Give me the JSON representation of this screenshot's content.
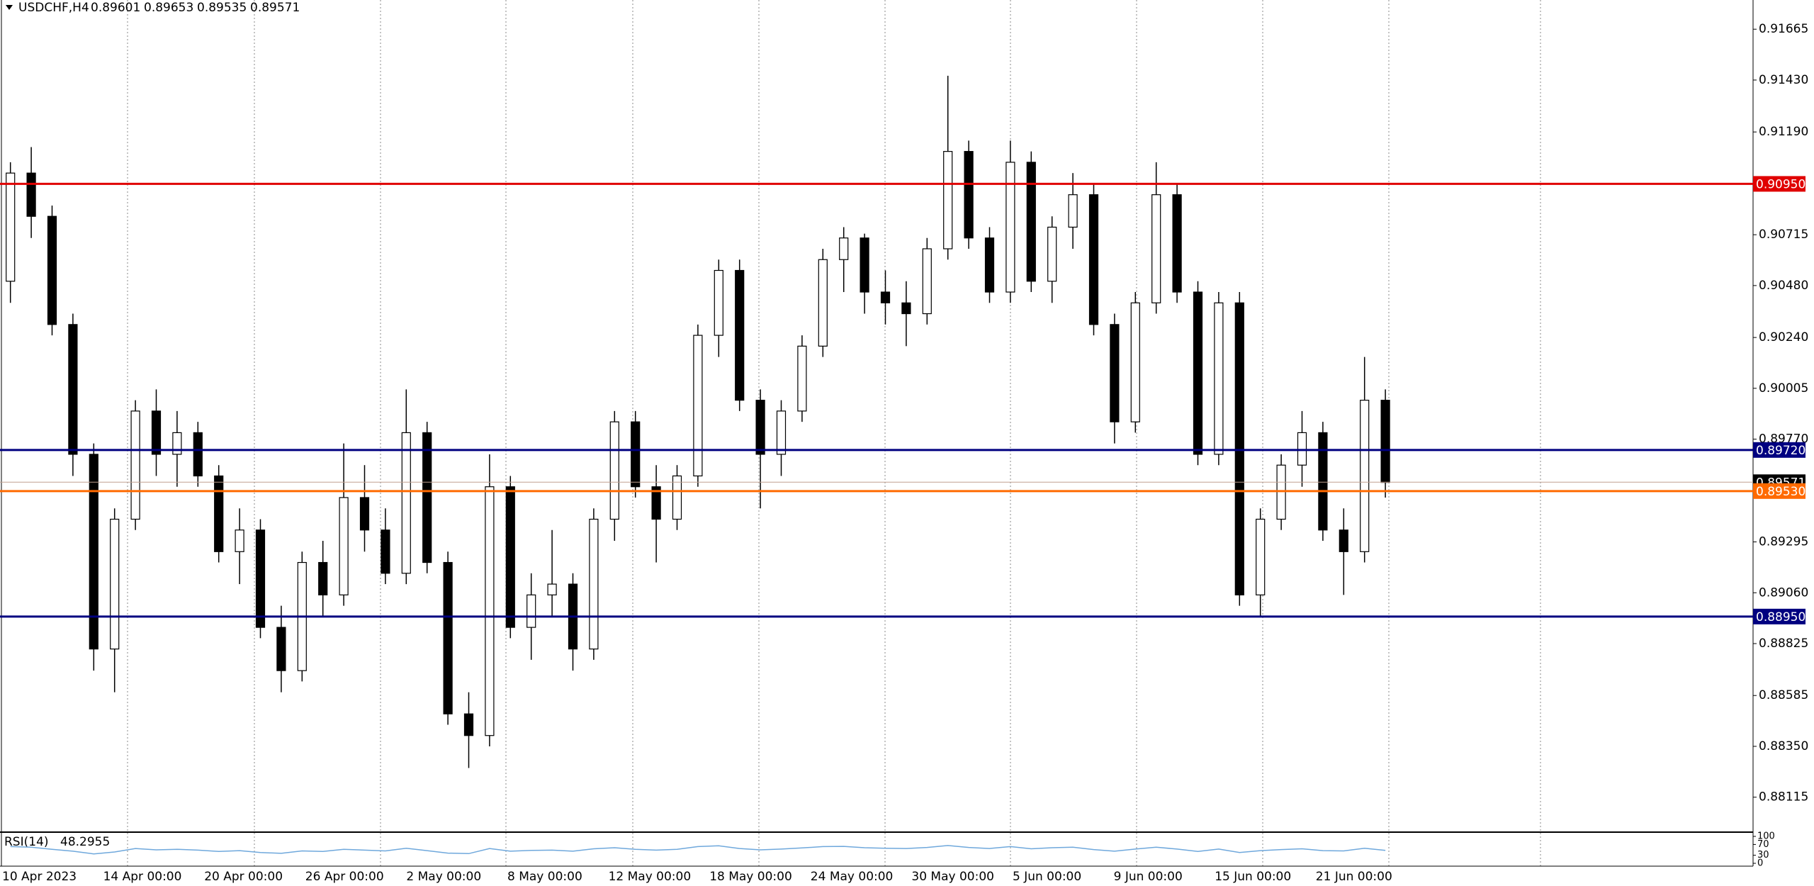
{
  "chart_data": {
    "type": "candlestick",
    "symbol": "USDCHF,H4",
    "quote": [
      0.89601,
      0.89653,
      0.89535,
      0.89571
    ],
    "categories": [
      "10 Apr 2023",
      "14 Apr 00:00",
      "20 Apr 00:00",
      "26 Apr 00:00",
      "2 May 00:00",
      "8 May 00:00",
      "12 May 00:00",
      "18 May 00:00",
      "24 May 00:00",
      "30 May 00:00",
      "5 Jun 00:00",
      "9 Jun 00:00",
      "15 Jun 00:00",
      "21 Jun 00:00"
    ],
    "open": [
      0.905,
      0.91,
      0.908,
      0.903,
      0.897,
      0.888,
      0.894,
      0.899,
      0.897,
      0.898,
      0.896,
      0.8925,
      0.8935,
      0.889,
      0.887,
      0.892,
      0.8905,
      0.895,
      0.8935,
      0.8915,
      0.898,
      0.892,
      0.885,
      0.884,
      0.8955,
      0.889,
      0.8905,
      0.891,
      0.888,
      0.894,
      0.8985,
      0.8955,
      0.894,
      0.896,
      0.9025,
      0.9055,
      0.8995,
      0.897,
      0.899,
      0.902,
      0.906,
      0.907,
      0.9045,
      0.904,
      0.9035,
      0.9065,
      0.911,
      0.907,
      0.9045,
      0.9105,
      0.905,
      0.9075,
      0.909,
      0.903,
      0.8985,
      0.904,
      0.909,
      0.9045,
      0.897,
      0.904,
      0.8905,
      0.894,
      0.8965,
      0.898,
      0.8935,
      0.8925,
      0.8995
    ],
    "high": [
      0.9105,
      0.9112,
      0.9085,
      0.9035,
      0.8975,
      0.8945,
      0.8995,
      0.9,
      0.899,
      0.8985,
      0.8965,
      0.8945,
      0.894,
      0.89,
      0.8925,
      0.893,
      0.8975,
      0.8965,
      0.8945,
      0.9,
      0.8985,
      0.8925,
      0.886,
      0.897,
      0.896,
      0.8915,
      0.8935,
      0.8915,
      0.8945,
      0.899,
      0.899,
      0.8965,
      0.8965,
      0.903,
      0.906,
      0.906,
      0.9,
      0.8995,
      0.9025,
      0.9065,
      0.9075,
      0.9072,
      0.9055,
      0.905,
      0.907,
      0.9145,
      0.9115,
      0.9075,
      0.9115,
      0.911,
      0.908,
      0.91,
      0.9095,
      0.9035,
      0.9045,
      0.9105,
      0.9095,
      0.905,
      0.9045,
      0.9045,
      0.8945,
      0.897,
      0.899,
      0.8985,
      0.8945,
      0.9015,
      0.9
    ],
    "low": [
      0.904,
      0.907,
      0.9025,
      0.896,
      0.887,
      0.886,
      0.8935,
      0.896,
      0.8955,
      0.8955,
      0.892,
      0.891,
      0.8885,
      0.886,
      0.8865,
      0.8895,
      0.89,
      0.8925,
      0.891,
      0.891,
      0.8915,
      0.8845,
      0.8825,
      0.8835,
      0.8885,
      0.8875,
      0.8895,
      0.887,
      0.8875,
      0.893,
      0.895,
      0.892,
      0.8935,
      0.8955,
      0.9015,
      0.899,
      0.8945,
      0.896,
      0.8985,
      0.9015,
      0.9045,
      0.9035,
      0.903,
      0.902,
      0.903,
      0.906,
      0.9065,
      0.904,
      0.904,
      0.9045,
      0.904,
      0.9065,
      0.9025,
      0.8975,
      0.898,
      0.9035,
      0.904,
      0.8965,
      0.8965,
      0.89,
      0.8895,
      0.8935,
      0.8955,
      0.893,
      0.8905,
      0.892,
      0.895
    ],
    "close": [
      0.91,
      0.908,
      0.903,
      0.897,
      0.888,
      0.894,
      0.899,
      0.897,
      0.898,
      0.896,
      0.8925,
      0.8935,
      0.889,
      0.887,
      0.892,
      0.8905,
      0.895,
      0.8935,
      0.8915,
      0.898,
      0.892,
      0.885,
      0.884,
      0.8955,
      0.889,
      0.8905,
      0.891,
      0.888,
      0.894,
      0.8985,
      0.8955,
      0.894,
      0.896,
      0.9025,
      0.9055,
      0.8995,
      0.897,
      0.899,
      0.902,
      0.906,
      0.907,
      0.9045,
      0.904,
      0.9035,
      0.9065,
      0.911,
      0.907,
      0.9045,
      0.9105,
      0.905,
      0.9075,
      0.909,
      0.903,
      0.8985,
      0.904,
      0.909,
      0.9045,
      0.897,
      0.904,
      0.8905,
      0.894,
      0.8965,
      0.898,
      0.8935,
      0.8925,
      0.8995,
      0.8957
    ],
    "ylim": [
      0.8796,
      0.918
    ],
    "yticks": [
      0.91665,
      {
        "value": 0.9143,
        "label": "0.91430"
      },
      {
        "value": 0.9119,
        "label": "0.91190"
      },
      0.90715,
      {
        "value": 0.9048,
        "label": "0.90480"
      },
      {
        "value": 0.9024,
        "label": "0.90240"
      },
      0.90005,
      {
        "value": 0.8977,
        "label": "0.89770"
      },
      0.89295,
      {
        "value": 0.8906,
        "label": "0.89060"
      },
      0.88825,
      0.88585,
      {
        "value": 0.8835,
        "label": "0.88350"
      },
      0.88115
    ],
    "levels": [
      {
        "value": 0.9095,
        "label": "0.90950",
        "color": "#e00000"
      },
      {
        "value": 0.8972,
        "label": "0.89720",
        "color": "#000080"
      },
      {
        "value": 0.89571,
        "label": "0.89571",
        "color": "#000000"
      },
      {
        "value": 0.8953,
        "label": "0.89530",
        "color": "#ff6a00"
      },
      {
        "value": 0.8895,
        "label": "0.88950",
        "color": "#000080"
      }
    ],
    "rsi_name": "RSI(14)",
    "rsi_last": 48.2955,
    "rsi_color": "#6fa8dc",
    "rsi": [
      62,
      60,
      52,
      45,
      35,
      42,
      55,
      50,
      52,
      49,
      44,
      47,
      40,
      37,
      46,
      44,
      52,
      49,
      46,
      56,
      47,
      38,
      36,
      55,
      45,
      48,
      49,
      45,
      54,
      58,
      52,
      49,
      52,
      62,
      65,
      55,
      50,
      53,
      57,
      62,
      63,
      58,
      56,
      55,
      59,
      66,
      59,
      55,
      62,
      54,
      58,
      60,
      51,
      45,
      53,
      60,
      53,
      44,
      53,
      40,
      47,
      51,
      54,
      47,
      46,
      56,
      48
    ],
    "rsi_ylim": [
      0,
      100
    ],
    "rsi_ticks": [
      100,
      70,
      30,
      0
    ]
  }
}
